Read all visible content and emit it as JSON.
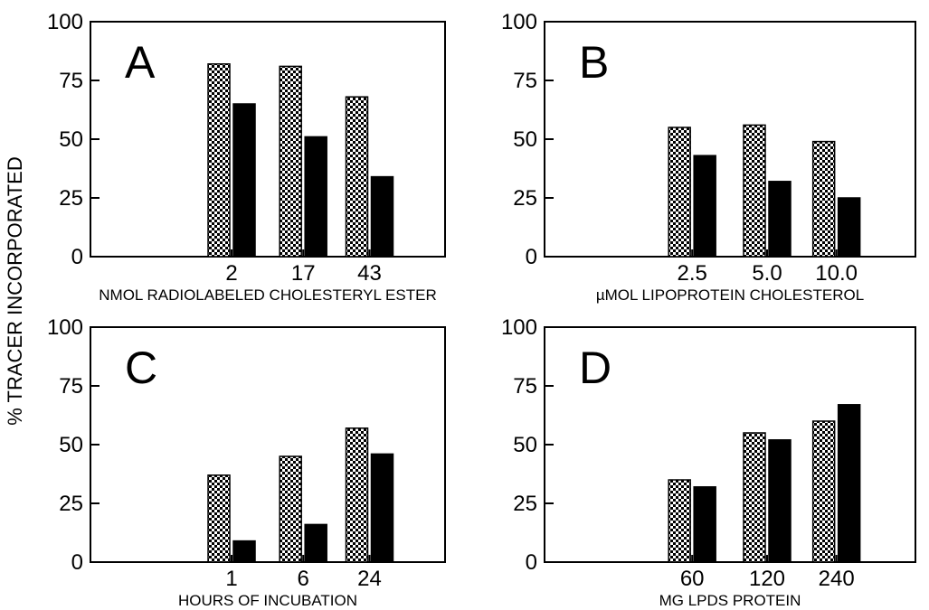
{
  "figure": {
    "ylabel": "% TRACER INCORPORATED",
    "series_colors": {
      "speckled": "#000000",
      "solid": "#000000"
    }
  },
  "chart_data": [
    {
      "type": "bar",
      "panel": "A",
      "categories": [
        "2",
        "17",
        "43"
      ],
      "xlabel": "NMOL RADIOLABELED CHOLESTERYL ESTER",
      "yticks": [
        "0",
        "25",
        "50",
        "75",
        "100"
      ],
      "ylim": [
        0,
        100
      ],
      "series": [
        {
          "pattern": "speckled",
          "values": [
            82,
            81,
            68
          ]
        },
        {
          "pattern": "solid",
          "values": [
            65,
            51,
            34
          ]
        }
      ]
    },
    {
      "type": "bar",
      "panel": "B",
      "categories": [
        "2.5",
        "5.0",
        "10.0"
      ],
      "xlabel": "µMOL LIPOPROTEIN CHOLESTEROL",
      "yticks": [
        "0",
        "25",
        "50",
        "75",
        "100"
      ],
      "ylim": [
        0,
        100
      ],
      "series": [
        {
          "pattern": "speckled",
          "values": [
            55,
            56,
            49
          ]
        },
        {
          "pattern": "solid",
          "values": [
            43,
            32,
            25
          ]
        }
      ]
    },
    {
      "type": "bar",
      "panel": "C",
      "categories": [
        "1",
        "6",
        "24"
      ],
      "xlabel": "HOURS OF INCUBATION",
      "yticks": [
        "0",
        "25",
        "50",
        "75",
        "100"
      ],
      "ylim": [
        0,
        100
      ],
      "series": [
        {
          "pattern": "speckled",
          "values": [
            37,
            45,
            57
          ]
        },
        {
          "pattern": "solid",
          "values": [
            9,
            16,
            46
          ]
        }
      ]
    },
    {
      "type": "bar",
      "panel": "D",
      "categories": [
        "60",
        "120",
        "240"
      ],
      "xlabel": "MG LPDS PROTEIN",
      "yticks": [
        "0",
        "25",
        "50",
        "75",
        "100"
      ],
      "ylim": [
        0,
        100
      ],
      "series": [
        {
          "pattern": "speckled",
          "values": [
            35,
            55,
            60
          ]
        },
        {
          "pattern": "solid",
          "values": [
            32,
            52,
            67
          ]
        }
      ]
    }
  ]
}
